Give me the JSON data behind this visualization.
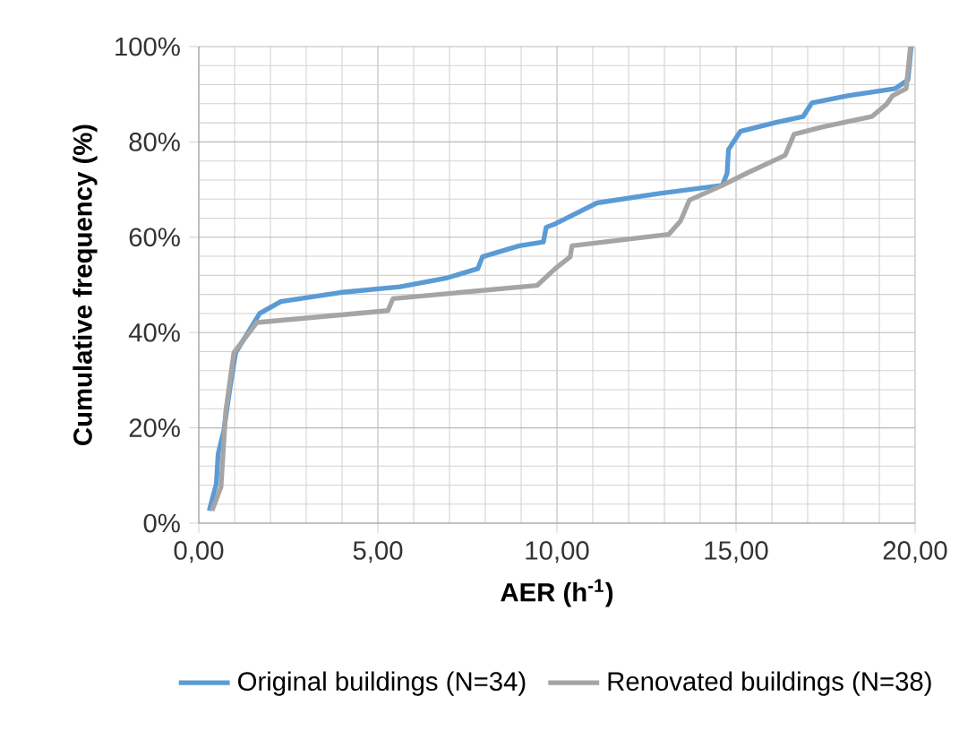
{
  "chart_data": {
    "type": "line",
    "xlabel": "AER (h$^{-1}$)",
    "ylabel": "Cumulative frequency (%)",
    "xlim": [
      0,
      20
    ],
    "ylim": [
      0,
      100
    ],
    "xticks": [
      {
        "value": 0,
        "label": "0,00"
      },
      {
        "value": 5,
        "label": "5,00"
      },
      {
        "value": 10,
        "label": "10,00"
      },
      {
        "value": 15,
        "label": "15,00"
      },
      {
        "value": 20,
        "label": "20,00"
      }
    ],
    "yticks": [
      {
        "value": 0,
        "label": "0%"
      },
      {
        "value": 20,
        "label": "20%"
      },
      {
        "value": 40,
        "label": "40%"
      },
      {
        "value": 60,
        "label": "60%"
      },
      {
        "value": 80,
        "label": "80%"
      },
      {
        "value": 100,
        "label": "100%"
      }
    ],
    "grid": true,
    "legend": "bottom",
    "marker": "none",
    "line_style": "solid",
    "series": [
      {
        "name": "Original buildings (N=34)",
        "color": "#5b9bd5",
        "x": [
          0.29,
          0.49,
          0.54,
          0.7,
          0.87,
          1.03,
          1.7,
          2.29,
          3.95,
          5.62,
          6.95,
          7.79,
          7.92,
          8.95,
          9.62,
          9.7,
          9.95,
          10.45,
          11.12,
          12.79,
          14.62,
          14.75,
          14.79,
          15.12,
          16.12,
          16.87,
          17.12,
          18.12,
          19.45,
          19.8,
          19.89
        ],
        "values": [
          2.6,
          8.3,
          14.5,
          19.5,
          28.3,
          35.8,
          44,
          46.5,
          48.4,
          49.6,
          51.5,
          53.4,
          55.9,
          58.2,
          59,
          62.1,
          62.8,
          64.7,
          67.2,
          69.1,
          70.9,
          73.4,
          78.4,
          82.2,
          84.1,
          85.3,
          88.2,
          89.7,
          91.2,
          93,
          100
        ]
      },
      {
        "name": "Renovated buildings (N=38)",
        "color": "#a5a5a5",
        "x": [
          0.37,
          0.62,
          0.75,
          0.98,
          1.62,
          5.28,
          5.42,
          9.45,
          9.95,
          10.37,
          10.42,
          13.12,
          13.45,
          13.7,
          14.62,
          15.29,
          16.37,
          16.62,
          17.45,
          18.79,
          19.2,
          19.37,
          19.75,
          19.87
        ],
        "values": [
          2.6,
          7.6,
          23.3,
          35.8,
          42.1,
          44.6,
          47.1,
          49.9,
          53.4,
          55.9,
          58.2,
          60.6,
          63.4,
          67.8,
          70.9,
          73.4,
          77.2,
          81.6,
          83.2,
          85.3,
          87.9,
          89.7,
          91.2,
          100
        ]
      }
    ]
  }
}
